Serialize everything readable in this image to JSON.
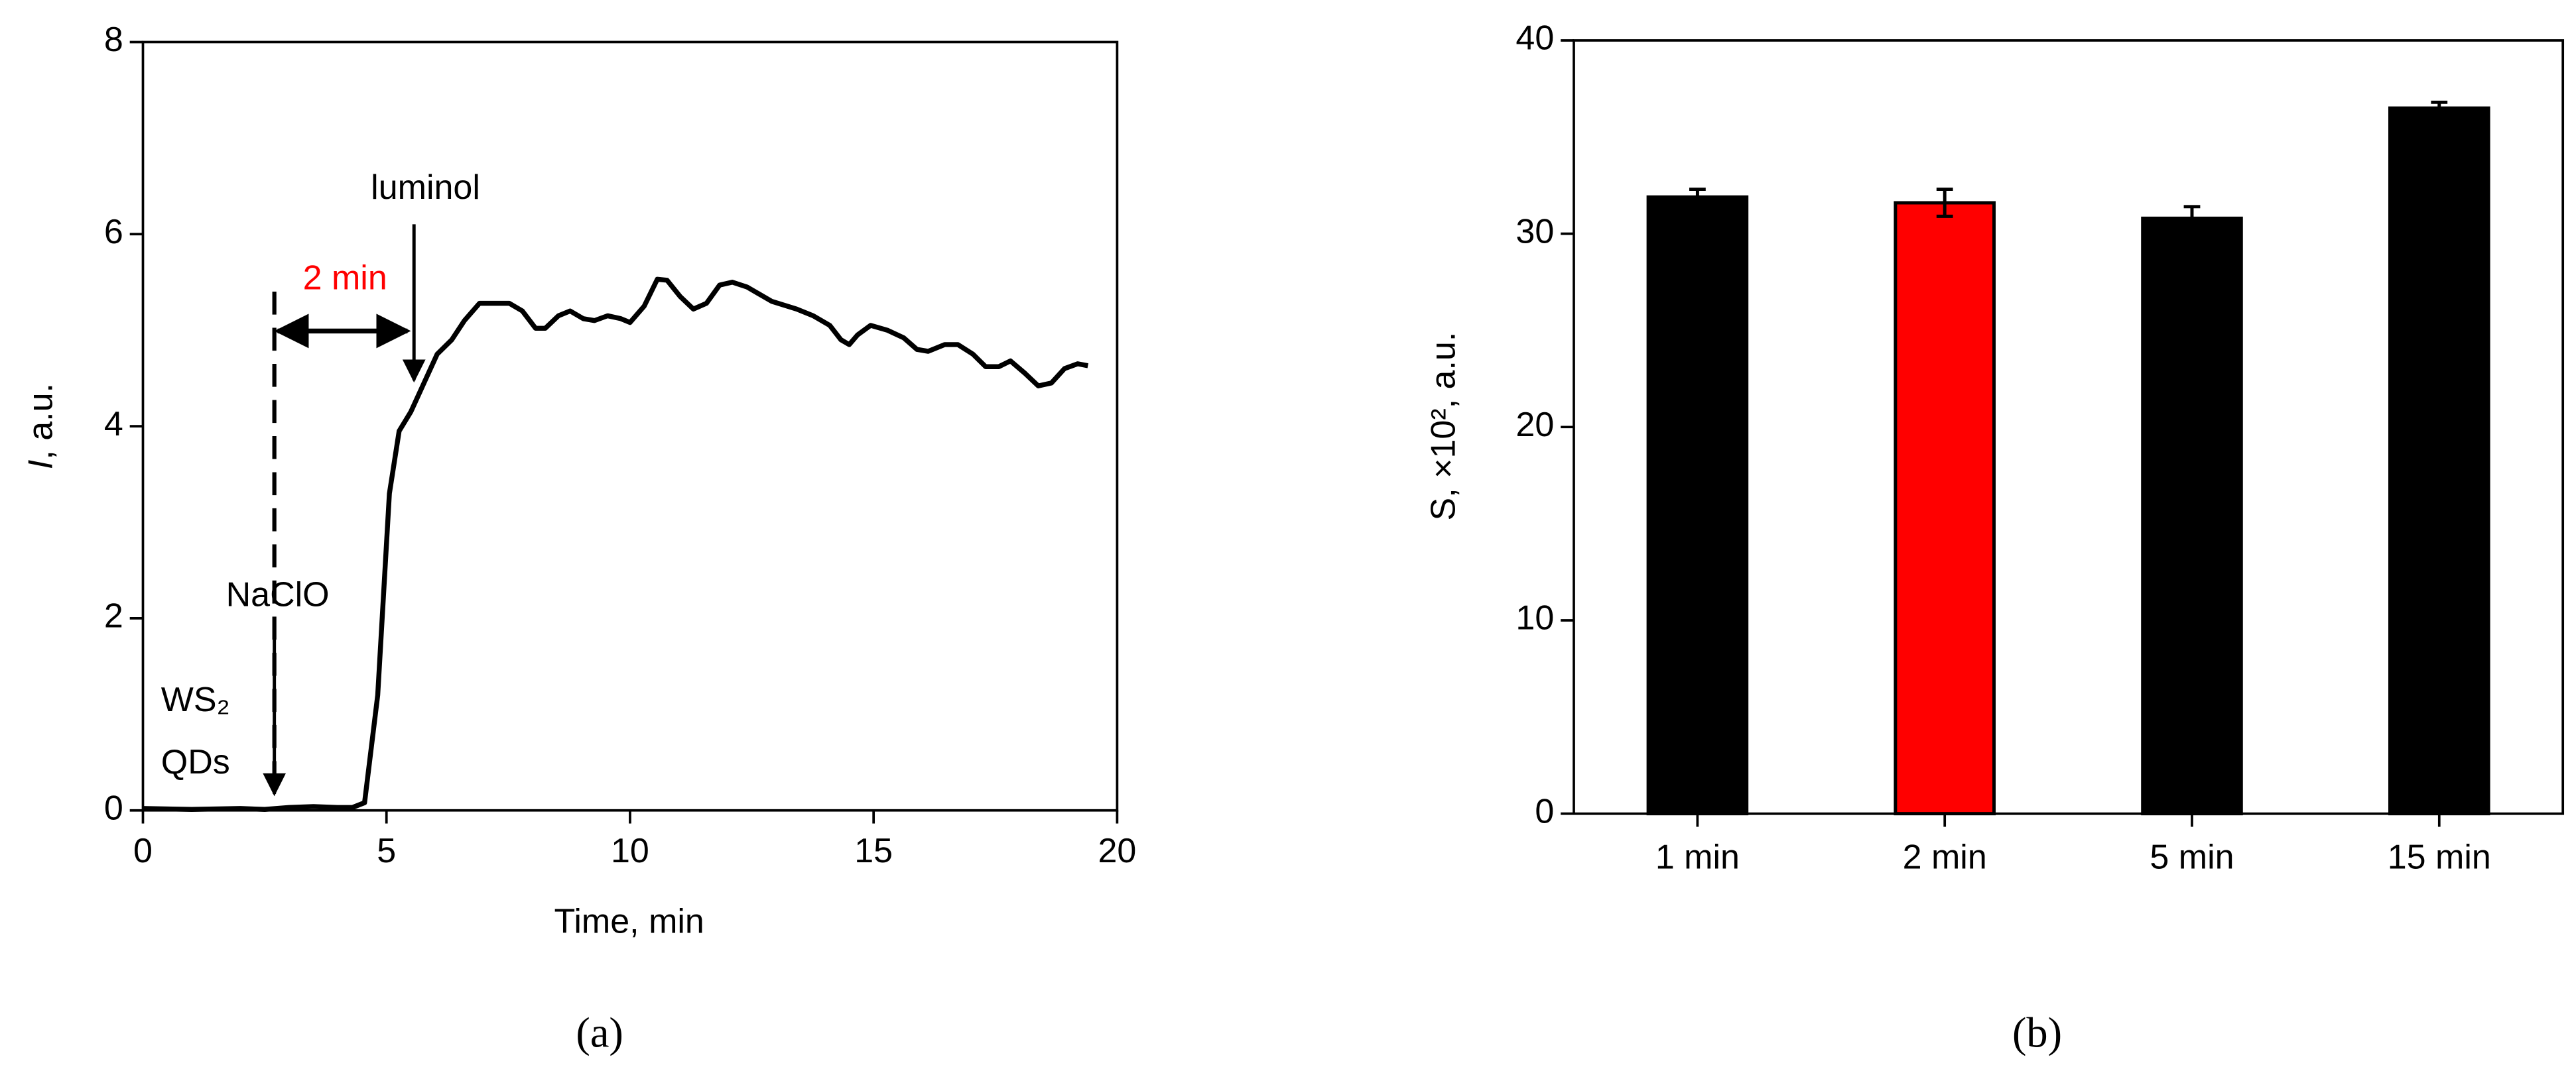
{
  "chart_data": [
    {
      "type": "line",
      "panel_label": "(a)",
      "x_label": "Time, min",
      "y_label": [
        "I",
        ", a.u."
      ],
      "x": [
        0,
        1,
        2,
        2.5,
        3,
        3.5,
        4,
        4.3,
        4.55,
        4.82,
        5.06,
        5.26,
        5.5,
        5.77,
        6.04,
        6.34,
        6.6,
        6.91,
        7.52,
        7.79,
        8.06,
        8.26,
        8.53,
        8.77,
        9.04,
        9.27,
        9.54,
        9.81,
        10.0,
        10.29,
        10.56,
        10.76,
        11.03,
        11.3,
        11.57,
        11.84,
        12.1,
        12.4,
        12.91,
        13.42,
        13.76,
        14.1,
        14.33,
        14.5,
        14.67,
        14.94,
        15.28,
        15.62,
        15.89,
        16.12,
        16.46,
        16.73,
        17.04,
        17.3,
        17.57,
        17.81,
        18.11,
        18.38,
        18.65,
        18.92,
        19.19,
        19.4
      ],
      "values": [
        0.02,
        0.01,
        0.02,
        0.01,
        0.03,
        0.04,
        0.03,
        0.03,
        0.08,
        1.2,
        3.3,
        3.95,
        4.15,
        4.45,
        4.75,
        4.9,
        5.1,
        5.28,
        5.28,
        5.2,
        5.02,
        5.02,
        5.15,
        5.2,
        5.12,
        5.1,
        5.15,
        5.12,
        5.08,
        5.25,
        5.53,
        5.52,
        5.35,
        5.22,
        5.28,
        5.47,
        5.5,
        5.45,
        5.3,
        5.22,
        5.15,
        5.05,
        4.9,
        4.85,
        4.95,
        5.05,
        5.0,
        4.92,
        4.8,
        4.78,
        4.85,
        4.85,
        4.75,
        4.62,
        4.62,
        4.68,
        4.55,
        4.42,
        4.45,
        4.6,
        4.65,
        4.63
      ],
      "color": "#000000",
      "xlim": [
        0,
        20
      ],
      "xticks": [
        0,
        5,
        10,
        15,
        20
      ],
      "ylim": [
        0,
        8
      ],
      "yticks": [
        0,
        2,
        4,
        6,
        8
      ],
      "annotations": [
        "luminol",
        "2 min",
        "NaClO",
        "WS₂",
        "QDs"
      ]
    },
    {
      "type": "bar",
      "panel_label": "(b)",
      "y_label": "S, ×10², a.u.",
      "categories": [
        "1 min",
        "2 min",
        "5 min",
        "15 min"
      ],
      "values": [
        31.9,
        31.6,
        30.8,
        36.5
      ],
      "errors": [
        0.4,
        0.7,
        0.6,
        0.3
      ],
      "colors": [
        "#000000",
        "#ff0000",
        "#000000",
        "#000000"
      ],
      "ylim": [
        0,
        40
      ],
      "yticks": [
        0,
        10,
        20,
        30,
        40
      ]
    }
  ]
}
